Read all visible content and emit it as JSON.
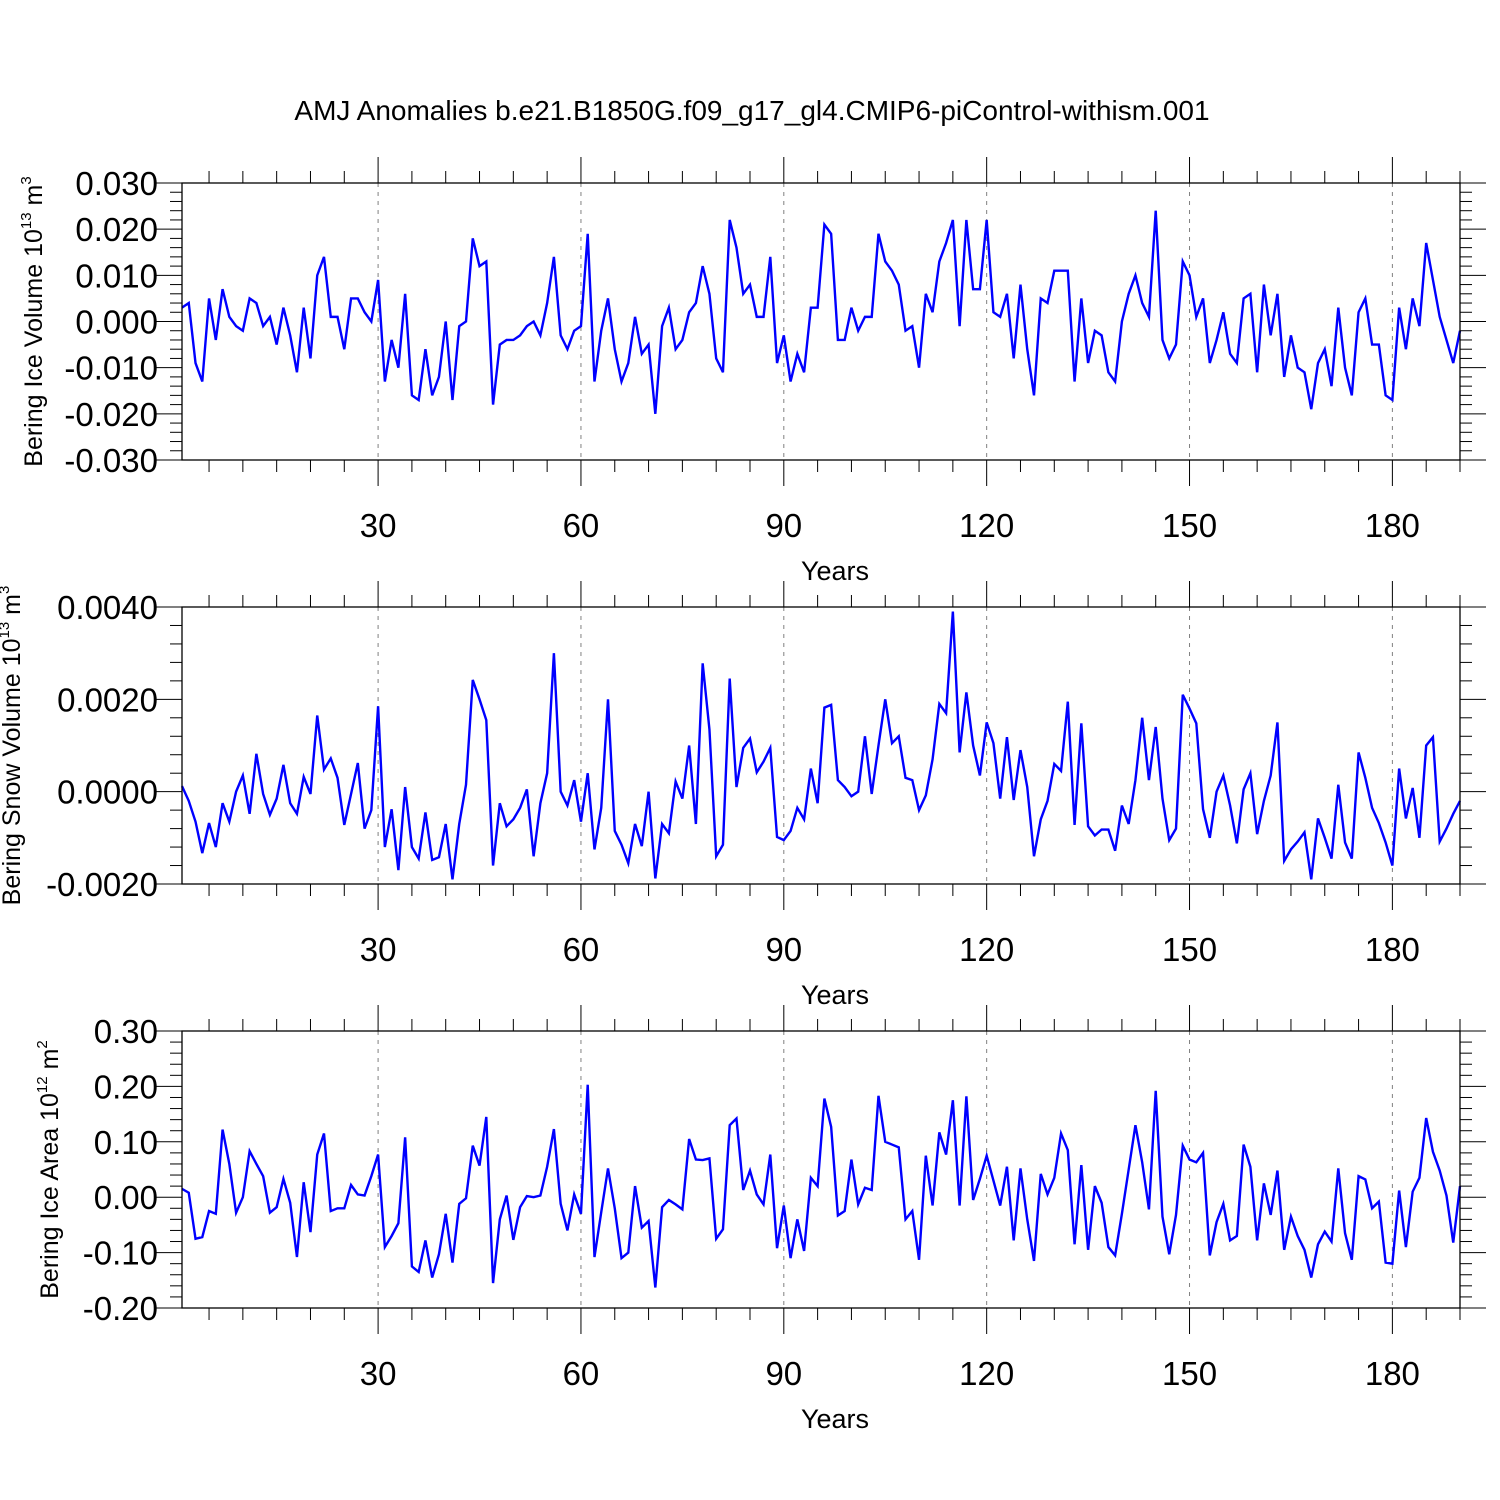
{
  "title": "AMJ Anomalies b.e21.B1850G.f09_g17_gl4.CMIP6-piControl-withism.001",
  "colors": {
    "line": "#0000ff",
    "axis": "#000000",
    "gridline": "#808080"
  },
  "chart_data": [
    {
      "type": "line",
      "ylabel": {
        "text": "Bering Ice Volume 10",
        "exp": "13",
        "unit": " m",
        "unit_exp": "3"
      },
      "xlabel": "Years",
      "xlim": [
        1,
        190
      ],
      "ylim": [
        -0.03,
        0.03
      ],
      "xticks": [
        30,
        60,
        90,
        120,
        150,
        180
      ],
      "xtick_labels": [
        "30",
        "60",
        "90",
        "120",
        "150",
        "180"
      ],
      "yticks": [
        -0.03,
        -0.02,
        -0.01,
        0.0,
        0.01,
        0.02,
        0.03
      ],
      "ytick_labels": [
        "-0.030",
        "-0.020",
        "-0.010",
        "0.000",
        "0.010",
        "0.020",
        "0.030"
      ],
      "grid_x": "dashed vertical at major x ticks",
      "series": [
        {
          "name": "Bering Ice Volume",
          "x_start": 1,
          "values": [
            0.003,
            0.004,
            -0.009,
            -0.013,
            0.005,
            -0.004,
            0.007,
            0.001,
            -0.001,
            -0.002,
            0.005,
            0.004,
            -0.001,
            0.001,
            -0.005,
            0.003,
            -0.003,
            -0.011,
            0.003,
            -0.008,
            0.01,
            0.014,
            0.001,
            0.001,
            -0.006,
            0.005,
            0.005,
            0.002,
            0.0,
            0.009,
            -0.013,
            -0.004,
            -0.01,
            0.006,
            -0.016,
            -0.017,
            -0.006,
            -0.016,
            -0.012,
            0.0,
            -0.017,
            -0.001,
            0.0,
            0.018,
            0.012,
            0.013,
            -0.018,
            -0.005,
            -0.004,
            -0.004,
            -0.003,
            -0.001,
            0.0,
            -0.003,
            0.004,
            0.014,
            -0.003,
            -0.006,
            -0.002,
            -0.001,
            0.019,
            -0.013,
            -0.002,
            0.005,
            -0.006,
            -0.013,
            -0.009,
            0.001,
            -0.007,
            -0.005,
            -0.02,
            -0.001,
            0.003,
            -0.006,
            -0.004,
            0.002,
            0.004,
            0.012,
            0.006,
            -0.008,
            -0.011,
            0.022,
            0.016,
            0.006,
            0.008,
            0.001,
            0.001,
            0.014,
            -0.009,
            -0.003,
            -0.013,
            -0.007,
            -0.011,
            0.003,
            0.003,
            0.021,
            0.019,
            -0.004,
            -0.004,
            0.003,
            -0.002,
            0.001,
            0.001,
            0.019,
            0.013,
            0.011,
            0.008,
            -0.002,
            -0.001,
            -0.01,
            0.006,
            0.002,
            0.013,
            0.017,
            0.022,
            -0.001,
            0.022,
            0.007,
            0.007,
            0.022,
            0.002,
            0.001,
            0.006,
            -0.008,
            0.008,
            -0.006,
            -0.016,
            0.005,
            0.004,
            0.011,
            0.011,
            0.011,
            -0.013,
            0.005,
            -0.009,
            -0.002,
            -0.003,
            -0.011,
            -0.013,
            0.0,
            0.006,
            0.01,
            0.004,
            0.001,
            0.024,
            -0.004,
            -0.008,
            -0.005,
            0.013,
            0.01,
            0.001,
            0.005,
            -0.009,
            -0.004,
            0.002,
            -0.007,
            -0.009,
            0.005,
            0.006,
            -0.011,
            0.008,
            -0.003,
            0.006,
            -0.012,
            -0.003,
            -0.01,
            -0.011,
            -0.019,
            -0.009,
            -0.006,
            -0.014,
            0.003,
            -0.01,
            -0.016,
            0.002,
            0.005,
            -0.005,
            -0.005,
            -0.016,
            -0.017,
            0.003,
            -0.006,
            0.005,
            -0.001,
            0.017,
            0.009,
            0.001,
            -0.004,
            -0.009,
            -0.002
          ]
        }
      ]
    },
    {
      "type": "line",
      "ylabel": {
        "text": "Bering Snow Volume 10",
        "exp": "13",
        "unit": " m",
        "unit_exp": "3"
      },
      "xlabel": "Years",
      "xlim": [
        1,
        190
      ],
      "ylim": [
        -0.002,
        0.004
      ],
      "xticks": [
        30,
        60,
        90,
        120,
        150,
        180
      ],
      "xtick_labels": [
        "30",
        "60",
        "90",
        "120",
        "150",
        "180"
      ],
      "yticks": [
        -0.002,
        0.0,
        0.002,
        0.004
      ],
      "ytick_labels": [
        "-0.0020",
        "0.0000",
        "0.0020",
        "0.0040"
      ],
      "grid_x": "dashed vertical at major x ticks",
      "series": [
        {
          "name": "Bering Snow Volume",
          "x_start": 1,
          "values": [
            0.00012,
            -0.0002,
            -0.00065,
            -0.00133,
            -0.00068,
            -0.0012,
            -0.00025,
            -0.00065,
            0.0,
            0.00035,
            -0.00048,
            0.00082,
            -5e-05,
            -0.0005,
            -0.00015,
            0.00058,
            -0.00025,
            -0.00048,
            0.00032,
            -5e-05,
            0.00165,
            0.00048,
            0.00072,
            0.0003,
            -0.00072,
            -5e-05,
            0.00062,
            -0.0008,
            -0.0004,
            0.00185,
            -0.0012,
            -0.00038,
            -0.0017,
            0.0001,
            -0.0012,
            -0.00145,
            -0.00045,
            -0.00148,
            -0.00142,
            -0.0007,
            -0.0019,
            -0.0007,
            0.00015,
            0.00242,
            0.002,
            0.00155,
            -0.0016,
            -0.00025,
            -0.00075,
            -0.0006,
            -0.00035,
            5e-05,
            -0.0014,
            -0.00025,
            0.0004,
            0.003,
            0.0,
            -0.0003,
            0.00025,
            -0.00065,
            0.0004,
            -0.00125,
            -0.00035,
            0.002,
            -0.00085,
            -0.00115,
            -0.00155,
            -0.0007,
            -0.00118,
            0.0,
            -0.00188,
            -0.0007,
            -0.0009,
            0.00022,
            -0.00015,
            0.001,
            -0.0007,
            0.00278,
            0.00135,
            -0.0014,
            -0.00115,
            0.00245,
            0.0001,
            0.00095,
            0.00115,
            0.00042,
            0.00065,
            0.00095,
            -0.00098,
            -0.00105,
            -0.00085,
            -0.00035,
            -0.0006,
            0.0005,
            -0.00025,
            0.00182,
            0.00188,
            0.00025,
            0.0001,
            -0.0001,
            0.0,
            0.0012,
            -5e-05,
            0.001,
            0.002,
            0.00105,
            0.0012,
            0.0003,
            0.00025,
            -0.0004,
            -8e-05,
            0.0007,
            0.0019,
            0.0017,
            0.0039,
            0.00085,
            0.00215,
            0.001,
            0.00035,
            0.0015,
            0.00105,
            -0.00015,
            0.00118,
            -0.00018,
            0.0009,
            0.0001,
            -0.0014,
            -0.0006,
            -0.0002,
            0.0006,
            0.00045,
            0.00195,
            -0.00072,
            0.00148,
            -0.00075,
            -0.00095,
            -0.00082,
            -0.00082,
            -0.00128,
            -0.0003,
            -0.0007,
            0.00025,
            0.0016,
            0.00025,
            0.0014,
            -0.00015,
            -0.00105,
            -0.0008,
            0.0021,
            0.0018,
            0.00148,
            -0.00038,
            -0.001,
            0.0,
            0.00035,
            -0.0003,
            -0.00112,
            5e-05,
            0.0004,
            -0.00092,
            -0.0002,
            0.00035,
            0.0015,
            -0.0015,
            -0.00125,
            -0.00108,
            -0.00088,
            -0.0019,
            -0.00058,
            -0.001,
            -0.00145,
            0.00015,
            -0.0011,
            -0.00145,
            0.00085,
            0.0003,
            -0.00035,
            -0.00068,
            -0.0011,
            -0.0016,
            0.0005,
            -0.00058,
            8e-05,
            -0.001,
            0.001,
            0.00118,
            -0.00108,
            -0.0008,
            -0.00048,
            -0.0002
          ]
        }
      ]
    },
    {
      "type": "line",
      "ylabel": {
        "text": "Bering Ice Area 10",
        "exp": "12",
        "unit": " m",
        "unit_exp": "2"
      },
      "xlabel": "Years",
      "xlim": [
        1,
        190
      ],
      "ylim": [
        -0.2,
        0.3
      ],
      "xticks": [
        30,
        60,
        90,
        120,
        150,
        180
      ],
      "xtick_labels": [
        "30",
        "60",
        "90",
        "120",
        "150",
        "180"
      ],
      "yticks": [
        -0.2,
        -0.1,
        0.0,
        0.1,
        0.2,
        0.3
      ],
      "ytick_labels": [
        "-0.20",
        "-0.10",
        "0.00",
        "0.10",
        "0.20",
        "0.30"
      ],
      "grid_x": "dashed vertical at major x ticks",
      "series": [
        {
          "name": "Bering Ice Area",
          "x_start": 1,
          "values": [
            0.015,
            0.008,
            -0.075,
            -0.072,
            -0.025,
            -0.03,
            0.122,
            0.06,
            -0.028,
            0.0,
            0.083,
            0.06,
            0.038,
            -0.028,
            -0.018,
            0.033,
            -0.01,
            -0.108,
            0.027,
            -0.063,
            0.077,
            0.115,
            -0.025,
            -0.02,
            -0.02,
            0.022,
            0.005,
            0.003,
            0.038,
            0.077,
            -0.09,
            -0.07,
            -0.047,
            0.108,
            -0.125,
            -0.135,
            -0.078,
            -0.145,
            -0.103,
            -0.03,
            -0.118,
            -0.012,
            -0.002,
            0.093,
            0.057,
            0.145,
            -0.155,
            -0.04,
            0.003,
            -0.077,
            -0.018,
            0.002,
            0.0,
            0.003,
            0.055,
            0.123,
            -0.012,
            -0.06,
            0.005,
            -0.03,
            0.203,
            -0.108,
            -0.027,
            0.052,
            -0.02,
            -0.11,
            -0.1,
            0.02,
            -0.055,
            -0.043,
            -0.163,
            -0.018,
            -0.005,
            -0.013,
            -0.022,
            0.105,
            0.068,
            0.067,
            0.07,
            -0.075,
            -0.058,
            0.13,
            0.142,
            0.013,
            0.048,
            0.005,
            -0.013,
            0.077,
            -0.092,
            -0.015,
            -0.11,
            -0.04,
            -0.097,
            0.035,
            0.02,
            0.178,
            0.127,
            -0.033,
            -0.025,
            0.068,
            -0.013,
            0.017,
            0.013,
            0.183,
            0.1,
            0.095,
            0.09,
            -0.04,
            -0.025,
            -0.113,
            0.075,
            -0.015,
            0.117,
            0.077,
            0.175,
            -0.015,
            0.182,
            -0.005,
            0.033,
            0.075,
            0.03,
            -0.015,
            0.055,
            -0.078,
            0.052,
            -0.04,
            -0.115,
            0.042,
            0.005,
            0.035,
            0.115,
            0.085,
            -0.085,
            0.058,
            -0.095,
            0.02,
            -0.01,
            -0.09,
            -0.105,
            -0.03,
            0.05,
            0.13,
            0.063,
            -0.022,
            0.192,
            -0.035,
            -0.103,
            -0.032,
            0.093,
            0.068,
            0.063,
            0.08,
            -0.105,
            -0.045,
            -0.012,
            -0.078,
            -0.07,
            0.095,
            0.055,
            -0.078,
            0.025,
            -0.032,
            0.048,
            -0.095,
            -0.035,
            -0.07,
            -0.095,
            -0.145,
            -0.085,
            -0.062,
            -0.08,
            0.052,
            -0.065,
            -0.113,
            0.038,
            0.032,
            -0.02,
            -0.008,
            -0.118,
            -0.12,
            0.012,
            -0.09,
            0.01,
            0.035,
            0.143,
            0.082,
            0.048,
            0.003,
            -0.082,
            0.02
          ]
        }
      ]
    }
  ]
}
